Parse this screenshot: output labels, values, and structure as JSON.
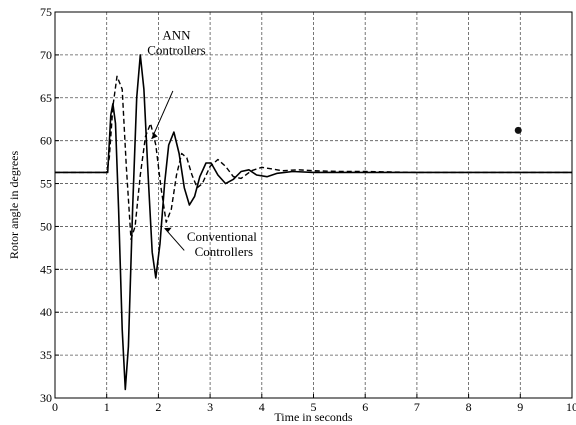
{
  "chart_data": {
    "type": "line",
    "title": "",
    "xlabel": "Time in seconds",
    "ylabel": "Rotor angle in degrees",
    "xlim": [
      0,
      10
    ],
    "ylim": [
      30,
      75
    ],
    "xticks": [
      0,
      1,
      2,
      3,
      4,
      5,
      6,
      7,
      8,
      9,
      10
    ],
    "yticks": [
      30,
      35,
      40,
      45,
      50,
      55,
      60,
      65,
      70,
      75
    ],
    "grid": true,
    "annotations": [
      {
        "lines": [
          "ANN",
          "Controllers"
        ],
        "target_series": "ANN Controllers"
      },
      {
        "lines": [
          "Conventional",
          "Controllers"
        ],
        "target_series": "Conventional Controllers"
      }
    ],
    "series": [
      {
        "name": "ANN Controllers",
        "style": "solid",
        "color": "#000000",
        "points": [
          [
            0,
            56.3
          ],
          [
            1.0,
            56.3
          ],
          [
            1.02,
            56.3
          ],
          [
            1.08,
            63.0
          ],
          [
            1.12,
            64.3
          ],
          [
            1.17,
            62.0
          ],
          [
            1.23,
            52.0
          ],
          [
            1.3,
            38.0
          ],
          [
            1.36,
            31.0
          ],
          [
            1.42,
            36.0
          ],
          [
            1.5,
            52.0
          ],
          [
            1.58,
            65.0
          ],
          [
            1.65,
            70.0
          ],
          [
            1.72,
            66.0
          ],
          [
            1.8,
            56.0
          ],
          [
            1.88,
            47.0
          ],
          [
            1.95,
            44.0
          ],
          [
            2.03,
            48.0
          ],
          [
            2.12,
            55.0
          ],
          [
            2.2,
            59.5
          ],
          [
            2.3,
            61.0
          ],
          [
            2.4,
            58.5
          ],
          [
            2.5,
            54.5
          ],
          [
            2.6,
            52.5
          ],
          [
            2.7,
            53.5
          ],
          [
            2.8,
            55.8
          ],
          [
            2.92,
            57.4
          ],
          [
            3.02,
            57.4
          ],
          [
            3.15,
            56.0
          ],
          [
            3.3,
            55.0
          ],
          [
            3.45,
            55.5
          ],
          [
            3.6,
            56.4
          ],
          [
            3.75,
            56.6
          ],
          [
            3.9,
            56.0
          ],
          [
            4.1,
            55.8
          ],
          [
            4.3,
            56.2
          ],
          [
            4.6,
            56.4
          ],
          [
            5.0,
            56.3
          ],
          [
            6.0,
            56.3
          ],
          [
            7.0,
            56.3
          ],
          [
            8.0,
            56.3
          ],
          [
            10.0,
            56.3
          ]
        ]
      },
      {
        "name": "Conventional Controllers",
        "style": "dashed",
        "color": "#000000",
        "points": [
          [
            0,
            56.3
          ],
          [
            1.0,
            56.3
          ],
          [
            1.05,
            58.0
          ],
          [
            1.12,
            64.0
          ],
          [
            1.2,
            67.5
          ],
          [
            1.3,
            66.0
          ],
          [
            1.38,
            57.0
          ],
          [
            1.47,
            48.5
          ],
          [
            1.55,
            50.0
          ],
          [
            1.65,
            56.0
          ],
          [
            1.75,
            60.5
          ],
          [
            1.85,
            62.0
          ],
          [
            1.95,
            59.5
          ],
          [
            2.05,
            54.5
          ],
          [
            2.15,
            50.5
          ],
          [
            2.25,
            52.0
          ],
          [
            2.35,
            56.0
          ],
          [
            2.45,
            58.5
          ],
          [
            2.55,
            58.0
          ],
          [
            2.65,
            56.0
          ],
          [
            2.75,
            54.5
          ],
          [
            2.85,
            55.0
          ],
          [
            3.0,
            57.0
          ],
          [
            3.15,
            57.8
          ],
          [
            3.3,
            57.0
          ],
          [
            3.45,
            55.8
          ],
          [
            3.6,
            55.6
          ],
          [
            3.8,
            56.5
          ],
          [
            4.0,
            56.9
          ],
          [
            4.2,
            56.7
          ],
          [
            4.4,
            56.5
          ],
          [
            4.7,
            56.6
          ],
          [
            5.0,
            56.5
          ],
          [
            5.5,
            56.4
          ],
          [
            6.0,
            56.4
          ],
          [
            7.0,
            56.3
          ],
          [
            8.0,
            56.3
          ],
          [
            10.0,
            56.3
          ]
        ]
      }
    ]
  }
}
